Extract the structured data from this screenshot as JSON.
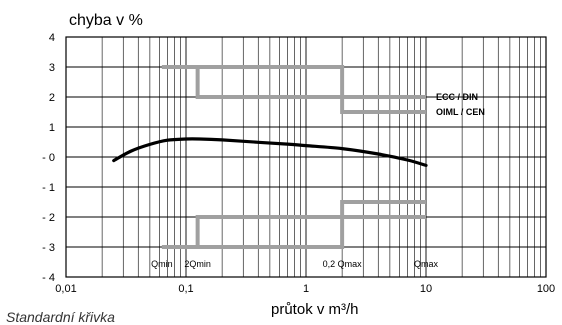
{
  "chart_data": {
    "type": "line",
    "ylabel": "chyba v %",
    "xlabel": "průtok v m³/h",
    "caption": "Standardní křivka",
    "x_scale": "log",
    "xlim": [
      0.01,
      100
    ],
    "ylim": [
      -4,
      4
    ],
    "x_ticks": [
      {
        "value": 0.01,
        "label": "0,01"
      },
      {
        "value": 0.1,
        "label": "0,1"
      },
      {
        "value": 1,
        "label": "1"
      },
      {
        "value": 10,
        "label": "10"
      },
      {
        "value": 100,
        "label": "100"
      }
    ],
    "y_ticks": [
      {
        "value": 4,
        "label": "4"
      },
      {
        "value": 3,
        "label": "3"
      },
      {
        "value": 2,
        "label": "2"
      },
      {
        "value": 1,
        "label": "1"
      },
      {
        "value": 0,
        "label": "- 0"
      },
      {
        "value": -1,
        "label": "- 1"
      },
      {
        "value": -2,
        "label": "- 2"
      },
      {
        "value": -3,
        "label": "- 3"
      },
      {
        "value": -4,
        "label": "- 4"
      }
    ],
    "grid": true,
    "series": [
      {
        "role": "error_curve",
        "color": "#000000",
        "x": [
          0.025,
          0.035,
          0.05,
          0.07,
          0.1,
          0.13,
          0.2,
          0.4,
          0.7,
          1,
          2,
          4,
          7,
          10
        ],
        "y": [
          -0.12,
          0.2,
          0.42,
          0.56,
          0.6,
          0.6,
          0.57,
          0.49,
          0.43,
          0.38,
          0.28,
          0.1,
          -0.1,
          -0.28
        ]
      },
      {
        "role": "limit_envelope",
        "name": "ECC / DIN",
        "color": "#a0a0a0",
        "upper": {
          "x": [
            0.063,
            0.125,
            0.125,
            2,
            2,
            10
          ],
          "y": [
            3,
            3,
            2,
            2,
            2,
            2
          ]
        },
        "lower": {
          "x": [
            0.063,
            0.125,
            0.125,
            2,
            2,
            10
          ],
          "y": [
            -3,
            -3,
            -2,
            -2,
            -2,
            -2
          ]
        }
      },
      {
        "role": "limit_envelope",
        "name": "OIML / CEN",
        "color": "#a0a0a0",
        "upper": {
          "x": [
            0.063,
            0.125,
            0.125,
            2,
            2,
            10
          ],
          "y": [
            3,
            3,
            3,
            3,
            1.5,
            1.5
          ]
        },
        "lower": {
          "x": [
            0.063,
            0.125,
            0.125,
            2,
            2,
            10
          ],
          "y": [
            -3,
            -3,
            -3,
            -3,
            -1.5,
            -1.5
          ]
        }
      }
    ],
    "annotations": [
      {
        "text": "Qmin",
        "x": 0.063
      },
      {
        "text": "2Qmin",
        "x": 0.125
      },
      {
        "text": "0,2 Qmax",
        "x": 2
      },
      {
        "text": "Qmax",
        "x": 10
      }
    ]
  }
}
